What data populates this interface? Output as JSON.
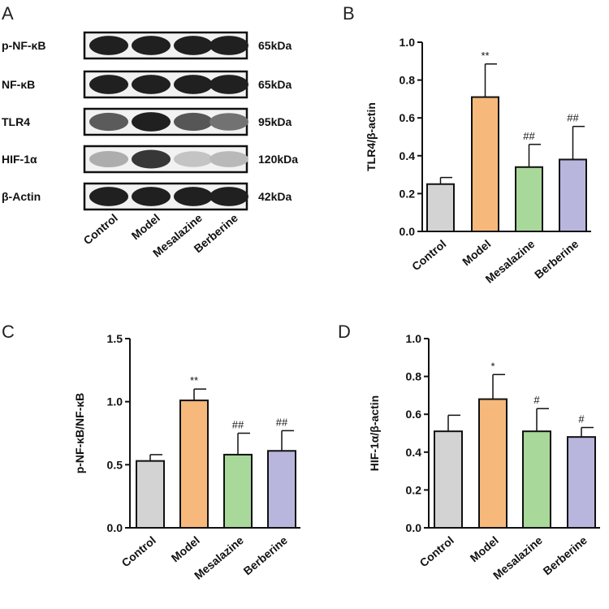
{
  "figure": {
    "panels": [
      "A",
      "B",
      "C",
      "D"
    ]
  },
  "blot": {
    "bands": [
      {
        "label": "p-NF-κB",
        "size": "65kDa"
      },
      {
        "label": "NF-κB",
        "size": "65kDa"
      },
      {
        "label": "TLR4",
        "size": "95kDa"
      },
      {
        "label": "HIF-1α",
        "size": "120kDa"
      },
      {
        "label": "β-Actin",
        "size": "42kDa"
      }
    ],
    "lanes": [
      "Control",
      "Model",
      "Mesalazine",
      "Berberine"
    ]
  },
  "colors": {
    "Control": "#d3d3d3",
    "Model": "#f6b97b",
    "Mesalazine": "#a8d89a",
    "Berberine": "#b9b6de"
  },
  "chart_data": [
    {
      "panel": "B",
      "type": "bar",
      "ylabel": "TLR4/β-actin",
      "categories": [
        "Control",
        "Model",
        "Mesalazine",
        "Berberine"
      ],
      "values": [
        0.25,
        0.71,
        0.34,
        0.38
      ],
      "errors": [
        0.035,
        0.175,
        0.12,
        0.175
      ],
      "annotations": [
        "",
        "**",
        "##",
        "##"
      ],
      "ylim": [
        0,
        1.0
      ],
      "yticks": [
        "0.0",
        "0.2",
        "0.4",
        "0.6",
        "0.8",
        "1.0"
      ],
      "ytick_values": [
        0,
        0.2,
        0.4,
        0.6,
        0.8,
        1.0
      ]
    },
    {
      "panel": "C",
      "type": "bar",
      "ylabel": "p-NF-κB/NF-κB",
      "categories": [
        "Control",
        "Model",
        "Mesalazine",
        "Berberine"
      ],
      "values": [
        0.53,
        1.01,
        0.58,
        0.61
      ],
      "errors": [
        0.05,
        0.09,
        0.17,
        0.16
      ],
      "annotations": [
        "",
        "**",
        "##",
        "##"
      ],
      "ylim": [
        0,
        1.5
      ],
      "yticks": [
        "0.0",
        "0.5",
        "1.0",
        "1.5"
      ],
      "ytick_values": [
        0,
        0.5,
        1.0,
        1.5
      ]
    },
    {
      "panel": "D",
      "type": "bar",
      "ylabel": "HIF-1α/β-actin",
      "categories": [
        "Control",
        "Model",
        "Mesalazine",
        "Berberine"
      ],
      "values": [
        0.51,
        0.68,
        0.51,
        0.48
      ],
      "errors": [
        0.085,
        0.13,
        0.12,
        0.05
      ],
      "annotations": [
        "",
        "*",
        "#",
        "#"
      ],
      "ylim": [
        0,
        1.0
      ],
      "yticks": [
        "0.0",
        "0.2",
        "0.4",
        "0.6",
        "0.8",
        "1.0"
      ],
      "ytick_values": [
        0,
        0.2,
        0.4,
        0.6,
        0.8,
        1.0
      ]
    }
  ]
}
